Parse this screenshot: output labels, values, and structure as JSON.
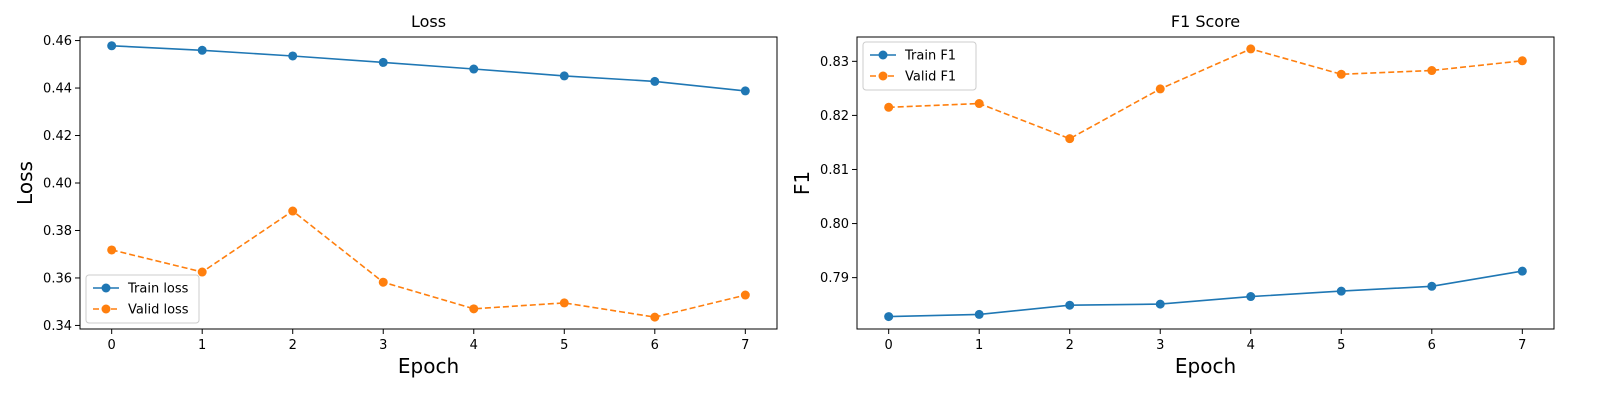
{
  "chart_data": [
    {
      "type": "line",
      "title": "Loss",
      "xlabel": "Epoch",
      "ylabel": "Loss",
      "x": [
        0,
        1,
        2,
        3,
        4,
        5,
        6,
        7
      ],
      "xlim": [
        -0.35,
        7.35
      ],
      "ylim": [
        0.3385,
        0.4615
      ],
      "xticks": [
        0,
        1,
        2,
        3,
        4,
        5,
        6,
        7
      ],
      "yticks": [
        0.34,
        0.36,
        0.38,
        0.4,
        0.42,
        0.44,
        0.46
      ],
      "ytick_labels": [
        "0.34",
        "0.36",
        "0.38",
        "0.40",
        "0.42",
        "0.44",
        "0.46"
      ],
      "grid": false,
      "legend": "lower-left",
      "series": [
        {
          "name": "Train loss",
          "color": "#1f77b4",
          "dash": "solid",
          "values": [
            0.4578,
            0.4559,
            0.4535,
            0.4508,
            0.448,
            0.4451,
            0.4428,
            0.4388
          ]
        },
        {
          "name": "Valid loss",
          "color": "#ff7f0e",
          "dash": "dashed",
          "values": [
            0.3718,
            0.3625,
            0.3882,
            0.3582,
            0.347,
            0.3495,
            0.3435,
            0.3528
          ]
        }
      ]
    },
    {
      "type": "line",
      "title": "F1 Score",
      "xlabel": "Epoch",
      "ylabel": "F1",
      "x": [
        0,
        1,
        2,
        3,
        4,
        5,
        6,
        7
      ],
      "xlim": [
        -0.35,
        7.35
      ],
      "ylim": [
        0.7805,
        0.8345
      ],
      "xticks": [
        0,
        1,
        2,
        3,
        4,
        5,
        6,
        7
      ],
      "yticks": [
        0.79,
        0.8,
        0.81,
        0.82,
        0.83
      ],
      "ytick_labels": [
        "0.79",
        "0.80",
        "0.81",
        "0.82",
        "0.83"
      ],
      "grid": false,
      "legend": "upper-left",
      "series": [
        {
          "name": "Train F1",
          "color": "#1f77b4",
          "dash": "solid",
          "values": [
            0.7828,
            0.7832,
            0.7849,
            0.7851,
            0.7865,
            0.7875,
            0.7884,
            0.7912
          ]
        },
        {
          "name": "Valid F1",
          "color": "#ff7f0e",
          "dash": "dashed",
          "values": [
            0.8215,
            0.8222,
            0.8157,
            0.8249,
            0.8323,
            0.8276,
            0.8283,
            0.8301
          ]
        }
      ]
    }
  ]
}
